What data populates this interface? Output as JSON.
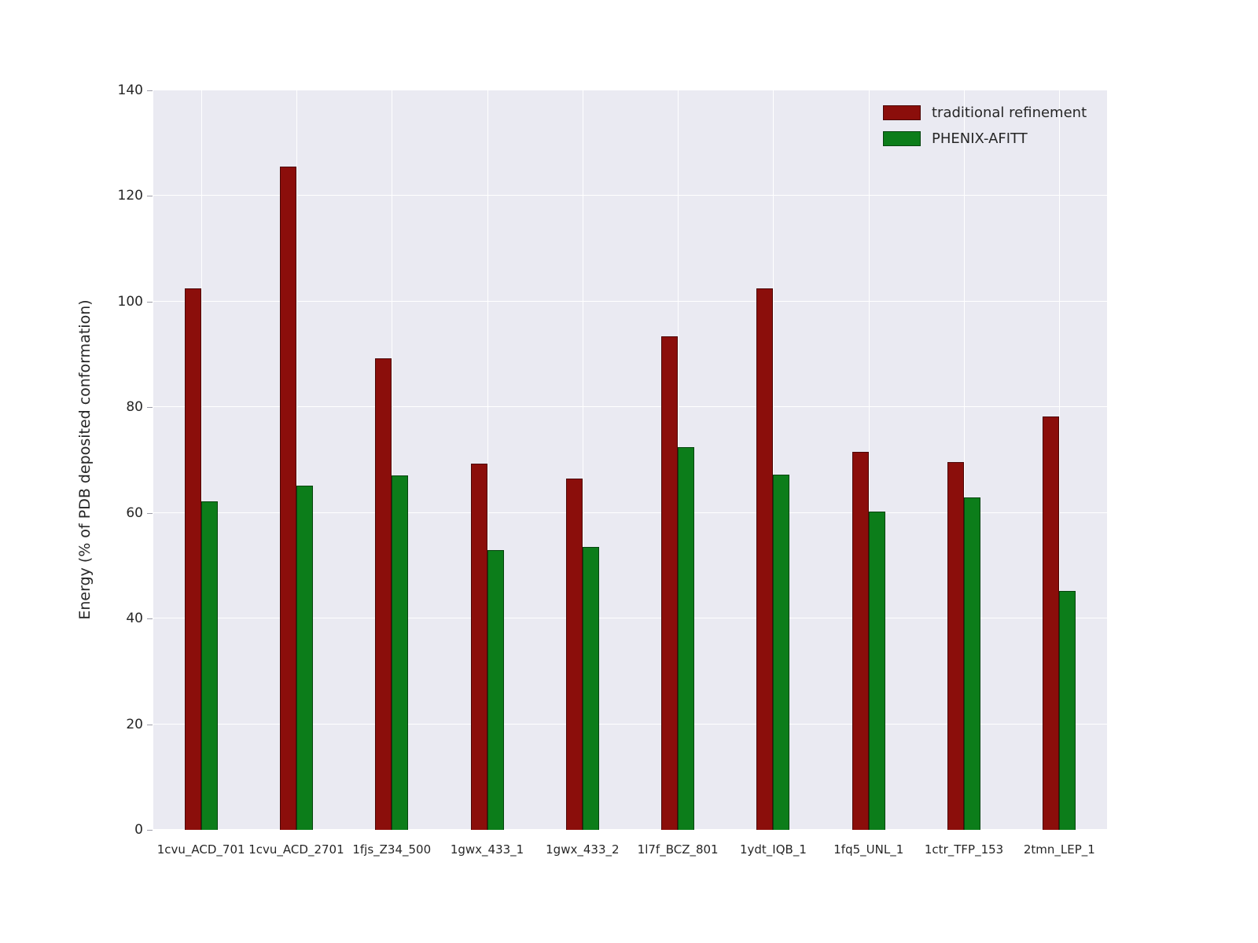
{
  "figure": {
    "background": "#ffffff",
    "plot_background": "#eaeaf2",
    "gridline_color": "#ffffff"
  },
  "chart_data": {
    "type": "bar",
    "title": "",
    "xlabel": "",
    "ylabel": "Energy (% of PDB deposited conformation)",
    "ylim": [
      0,
      140
    ],
    "yticks": [
      0,
      20,
      40,
      60,
      80,
      100,
      120,
      140
    ],
    "grid": true,
    "legend_position": "upper right",
    "categories": [
      "1cvu_ACD_701",
      "1cvu_ACD_2701",
      "1fjs_Z34_500",
      "1gwx_433_1",
      "1gwx_433_2",
      "1l7f_BCZ_801",
      "1ydt_IQB_1",
      "1fq5_UNL_1",
      "1ctr_TFP_153",
      "2tmn_LEP_1"
    ],
    "series": [
      {
        "name": "traditional refinement",
        "color": "#8b0e0b",
        "values": [
          102.5,
          125.5,
          89.3,
          69.3,
          66.5,
          93.5,
          102.5,
          71.6,
          69.7,
          78.3
        ]
      },
      {
        "name": "PHENIX-AFITT",
        "color": "#0c7d1a",
        "values": [
          62.2,
          65.2,
          67.1,
          53.0,
          53.6,
          72.4,
          67.3,
          60.2,
          62.9,
          45.2
        ]
      }
    ]
  }
}
